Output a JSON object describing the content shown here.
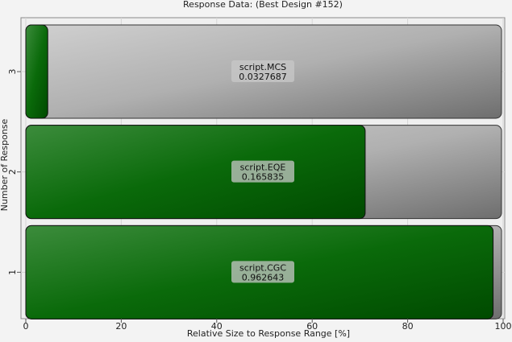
{
  "chart_data": {
    "type": "bar",
    "orientation": "horizontal",
    "title": "Response Data: (Best Design #152)",
    "xlabel": "Relative Size to Response Range [%]",
    "ylabel": "Number of Response",
    "xlim": [
      0,
      100
    ],
    "xticks": [
      "0",
      "20",
      "40",
      "60",
      "80",
      "100"
    ],
    "categories": [
      "1",
      "2",
      "3"
    ],
    "bars": [
      {
        "category": "1",
        "name": "script.CGC",
        "value_label": "0.962643",
        "percent": 97.9
      },
      {
        "category": "2",
        "name": "script.EQE",
        "value_label": "0.165835",
        "percent": 71.1
      },
      {
        "category": "3",
        "name": "script.MCS",
        "value_label": "0.0327687",
        "percent": 4.6
      }
    ],
    "grid": true,
    "colors": {
      "fill": "#0a6e0a",
      "track": "#a8a8a8",
      "label_bg": "#c8c8c8"
    }
  }
}
